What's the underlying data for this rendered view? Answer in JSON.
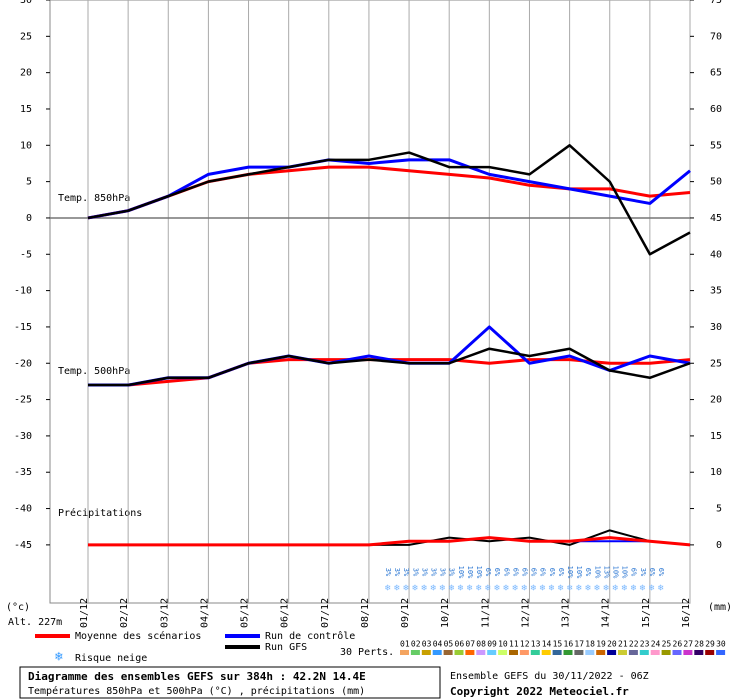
{
  "chart_data": {
    "type": "line",
    "categories": [
      "01/12",
      "02/12",
      "03/12",
      "04/12",
      "05/12",
      "06/12",
      "07/12",
      "08/12",
      "09/12",
      "10/12",
      "11/12",
      "12/12",
      "13/12",
      "14/12",
      "15/12",
      "16/12"
    ],
    "ylim": [
      -53,
      30
    ],
    "yticks": [
      -45,
      -40,
      -35,
      -30,
      -25,
      -20,
      -15,
      -10,
      -5,
      0,
      5,
      10,
      15,
      20,
      25,
      30
    ],
    "y2lim": [
      -8,
      75
    ],
    "y2ticks": [
      0,
      5,
      10,
      15,
      20,
      25,
      30,
      35,
      40,
      45,
      50,
      55,
      60,
      65,
      70,
      75
    ],
    "y_unit": "(°c)",
    "y2_unit": "(mm)",
    "annotations": [
      "Temp. 850hPa",
      "Temp. 500hPa",
      "Précipitations",
      "Alt. 227m"
    ],
    "series": [
      {
        "color": "#ff0000",
        "width": 3,
        "values": [
          0,
          1,
          3,
          5,
          6,
          6.5,
          7,
          7,
          6.5,
          6,
          5.5,
          4.5,
          4,
          4,
          3,
          3.5
        ]
      },
      {
        "color": "#0000ff",
        "width": 3,
        "values": [
          0,
          1,
          3,
          6,
          7,
          7,
          8,
          7.5,
          8,
          8,
          6,
          5,
          4,
          3,
          2,
          6.5
        ]
      },
      {
        "color": "#000000",
        "width": 2.5,
        "values": [
          0,
          1,
          3,
          5,
          6,
          7,
          8,
          8,
          9,
          7,
          7,
          6,
          10,
          5,
          -5,
          -2
        ]
      },
      {
        "color": "#ff0000",
        "width": 3,
        "values": [
          -23,
          -23,
          -22.5,
          -22,
          -20,
          -19.5,
          -19.5,
          -19.5,
          -19.5,
          -19.5,
          -20,
          -19.5,
          -19.5,
          -20,
          -20,
          -19.5
        ]
      },
      {
        "color": "#0000ff",
        "width": 3,
        "values": [
          -23,
          -23,
          -22,
          -22,
          -20,
          -19,
          -20,
          -19,
          -20,
          -20,
          -15,
          -20,
          -19,
          -21,
          -19,
          -20
        ]
      },
      {
        "color": "#000000",
        "width": 2.5,
        "values": [
          -23,
          -23,
          -22,
          -22,
          -20,
          -19,
          -20,
          -19.5,
          -20,
          -20,
          -18,
          -19,
          -18,
          -21,
          -22,
          -20
        ]
      },
      {
        "color": "#000000",
        "width": 2,
        "axis": "y2",
        "values": [
          0,
          0,
          0,
          0,
          0,
          0,
          0,
          0,
          0,
          1,
          0.5,
          1,
          0,
          2,
          0.5,
          0
        ]
      },
      {
        "color": "#0000ff",
        "width": 2,
        "axis": "y2",
        "values": [
          0,
          0,
          0,
          0,
          0,
          0,
          0,
          0,
          0.5,
          0.5,
          1,
          0.5,
          0.5,
          0.5,
          0.5,
          0
        ]
      },
      {
        "color": "#ff0000",
        "width": 3,
        "axis": "y2",
        "values": [
          0,
          0,
          0,
          0,
          0,
          0,
          0,
          0,
          0.5,
          0.5,
          1,
          0.5,
          0.5,
          1,
          0.5,
          0
        ]
      }
    ],
    "snow_risk": [
      "3%",
      "3%",
      "3%",
      "3%",
      "3%",
      "3%",
      "3%",
      "3%",
      "10%",
      "10%",
      "10%",
      "6%",
      "6%",
      "6%",
      "6%",
      "6%",
      "6%",
      "6%",
      "6%",
      "6%",
      "10%",
      "10%",
      "6%",
      "10%",
      "13%",
      "10%",
      "10%",
      "6%",
      "3%",
      "6%",
      "6%"
    ],
    "legend": [
      {
        "name": "Moyenne des scénarios",
        "color": "#ff0000"
      },
      {
        "name": "Run de contrôle",
        "color": "#0000ff"
      },
      {
        "name": "Run GFS",
        "color": "#000000"
      }
    ],
    "snow_legend": "Risque neige",
    "perturbations_title": "30 Perts.",
    "perturbations": [
      {
        "label": "01",
        "color": "#f4a460"
      },
      {
        "label": "02",
        "color": "#66cc66"
      },
      {
        "label": "03",
        "color": "#c8a000"
      },
      {
        "label": "04",
        "color": "#3399ff"
      },
      {
        "label": "05",
        "color": "#996633"
      },
      {
        "label": "06",
        "color": "#99cc33"
      },
      {
        "label": "07",
        "color": "#ff6600"
      },
      {
        "label": "08",
        "color": "#cc99ff"
      },
      {
        "label": "09",
        "color": "#66ccff"
      },
      {
        "label": "10",
        "color": "#ccff66"
      },
      {
        "label": "11",
        "color": "#aa6600"
      },
      {
        "label": "12",
        "color": "#ff9966"
      },
      {
        "label": "13",
        "color": "#33cc99"
      },
      {
        "label": "14",
        "color": "#ffcc00"
      },
      {
        "label": "15",
        "color": "#336699"
      },
      {
        "label": "16",
        "color": "#339933"
      },
      {
        "label": "17",
        "color": "#666666"
      },
      {
        "label": "18",
        "color": "#99ccff"
      },
      {
        "label": "19",
        "color": "#cc6600"
      },
      {
        "label": "20",
        "color": "#000099"
      },
      {
        "label": "21",
        "color": "#cccc33"
      },
      {
        "label": "22",
        "color": "#666699"
      },
      {
        "label": "23",
        "color": "#33cccc"
      },
      {
        "label": "24",
        "color": "#ff99cc"
      },
      {
        "label": "25",
        "color": "#999900"
      },
      {
        "label": "26",
        "color": "#6666ff"
      },
      {
        "label": "27",
        "color": "#cc33cc"
      },
      {
        "label": "28",
        "color": "#330066"
      },
      {
        "label": "29",
        "color": "#990000"
      },
      {
        "label": "30",
        "color": "#3366ff"
      }
    ]
  },
  "footer": {
    "box_title": "Diagramme des ensembles GEFS sur 384h : 42.2N 14.4E",
    "box_subtitle": "Températures 850hPa et 500hPa (°C) , précipitations (mm)",
    "run": "Ensemble GEFS du 30/11/2022 - 06Z",
    "copyright": "Copyright 2022 Meteociel.fr"
  }
}
